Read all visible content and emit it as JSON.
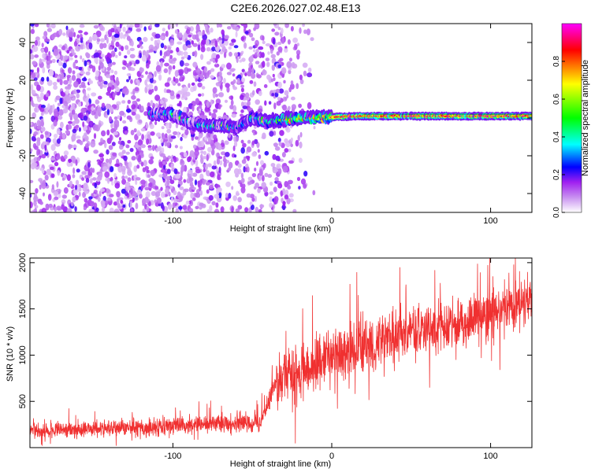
{
  "title": "C2E6.2026.027.02.48.E13",
  "chart_data": [
    {
      "type": "heatmap",
      "title": "C2E6.2026.027.02.48.E13",
      "xlabel": "Height of straight line (km)",
      "ylabel": "Frequency (Hz)",
      "xlim": [
        -190,
        126
      ],
      "ylim": [
        -50,
        50
      ],
      "xticks": [
        -100,
        0,
        100
      ],
      "xtick_labels": [
        "-100",
        "0",
        "100"
      ],
      "yticks": [
        -40,
        -20,
        0,
        20,
        40
      ],
      "ytick_labels": [
        "-40",
        "-20",
        "0",
        "20",
        "40"
      ],
      "colorbar": {
        "label": "Normalized spectral amplitude",
        "range": [
          0,
          1
        ],
        "ticks": [
          0.0,
          0.2,
          0.4,
          0.6,
          0.8
        ],
        "tick_labels": [
          "0.0",
          "0.2",
          "0.4",
          "0.6",
          "0.8"
        ],
        "colormap": [
          "#ffffff",
          "#a020f0",
          "#0000ff",
          "#00ffff",
          "#00ff00",
          "#ffff00",
          "#ff0000",
          "#ff00ff"
        ]
      },
      "ridge": {
        "center_hz": [
          [
            -110,
            2
          ],
          [
            -100,
            2
          ],
          [
            -90,
            -2
          ],
          [
            -80,
            -4
          ],
          [
            -70,
            -4
          ],
          [
            -60,
            -5
          ],
          [
            -50,
            0
          ],
          [
            -40,
            -2
          ],
          [
            -30,
            -1
          ],
          [
            -20,
            0
          ],
          [
            -10,
            0
          ],
          [
            0,
            0.5
          ],
          [
            20,
            1
          ],
          [
            50,
            1
          ],
          [
            100,
            1
          ],
          [
            126,
            1
          ]
        ],
        "peak_amplitude": [
          [
            -110,
            0.2
          ],
          [
            -90,
            0.25
          ],
          [
            -80,
            0.35
          ],
          [
            -60,
            0.3
          ],
          [
            -45,
            0.4
          ],
          [
            -30,
            0.55
          ],
          [
            -10,
            0.7
          ],
          [
            0,
            0.85
          ],
          [
            20,
            0.85
          ],
          [
            60,
            0.9
          ],
          [
            100,
            0.9
          ],
          [
            126,
            0.85
          ]
        ]
      },
      "noise_cutoff_km": -25
    },
    {
      "type": "line",
      "xlabel": "Height of straight line (km)",
      "ylabel": "SNR (10 * v/v)",
      "xlim": [
        -190,
        126
      ],
      "ylim": [
        0,
        2050
      ],
      "xticks": [
        -100,
        0,
        100
      ],
      "xtick_labels": [
        "-100",
        "0",
        "100"
      ],
      "yticks": [
        500,
        1000,
        1500,
        2000
      ],
      "ytick_labels": [
        "500",
        "1000",
        "1500",
        "2000"
      ],
      "color": "#f03030",
      "trend": {
        "x": [
          -190,
          -150,
          -100,
          -70,
          -60,
          -45,
          -35,
          -20,
          0,
          20,
          50,
          80,
          100,
          126
        ],
        "y": [
          180,
          200,
          230,
          280,
          260,
          270,
          700,
          800,
          1000,
          1100,
          1250,
          1350,
          1450,
          1600
        ]
      },
      "noise_amplitude": {
        "x": [
          -190,
          -40,
          -35,
          126
        ],
        "y": [
          90,
          100,
          300,
          250
        ]
      }
    }
  ]
}
